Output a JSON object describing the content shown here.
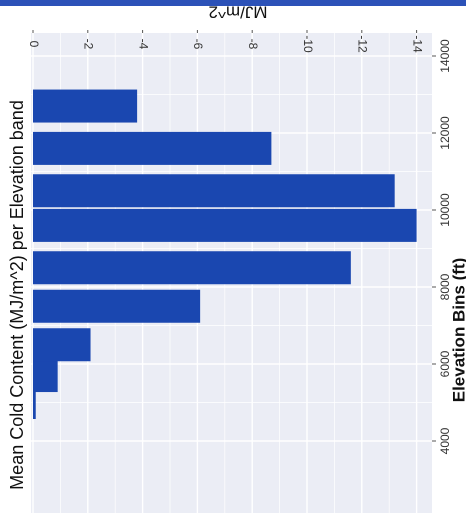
{
  "chart_data": {
    "type": "bar",
    "orientation": "horizontal",
    "rotated": "image rotated 90 degrees clockwise",
    "title": "Mean Cold Content (MJ/m^2) per Elevation band",
    "xlabel": "Elevation Bins (ft)",
    "ylabel": "MJ/m^2",
    "x_ticks": [
      "4000",
      "6000",
      "8000",
      "10000",
      "12000",
      "14000"
    ],
    "y_ticks": [
      "0",
      "-2",
      "-4",
      "-6",
      "-8",
      "-10",
      "-12",
      "-14"
    ],
    "xlim": [
      4000,
      14000
    ],
    "ylim": [
      0,
      -14.7
    ],
    "grid": true,
    "colors": {
      "bar": "#1a47b0",
      "panel": "#ebedf5",
      "grid": "#ffffff",
      "frame": "#2c52b8"
    },
    "categories": [
      "5000",
      "5700",
      "6500",
      "7500",
      "8500",
      "9600",
      "10500",
      "11600",
      "12700"
    ],
    "x": [
      5000,
      5700,
      6500,
      7500,
      8500,
      9600,
      10500,
      11600,
      12700
    ],
    "values": [
      -0.1,
      -0.9,
      -2.1,
      -6.1,
      -11.6,
      -14.0,
      -13.2,
      -8.7,
      -3.8
    ]
  }
}
